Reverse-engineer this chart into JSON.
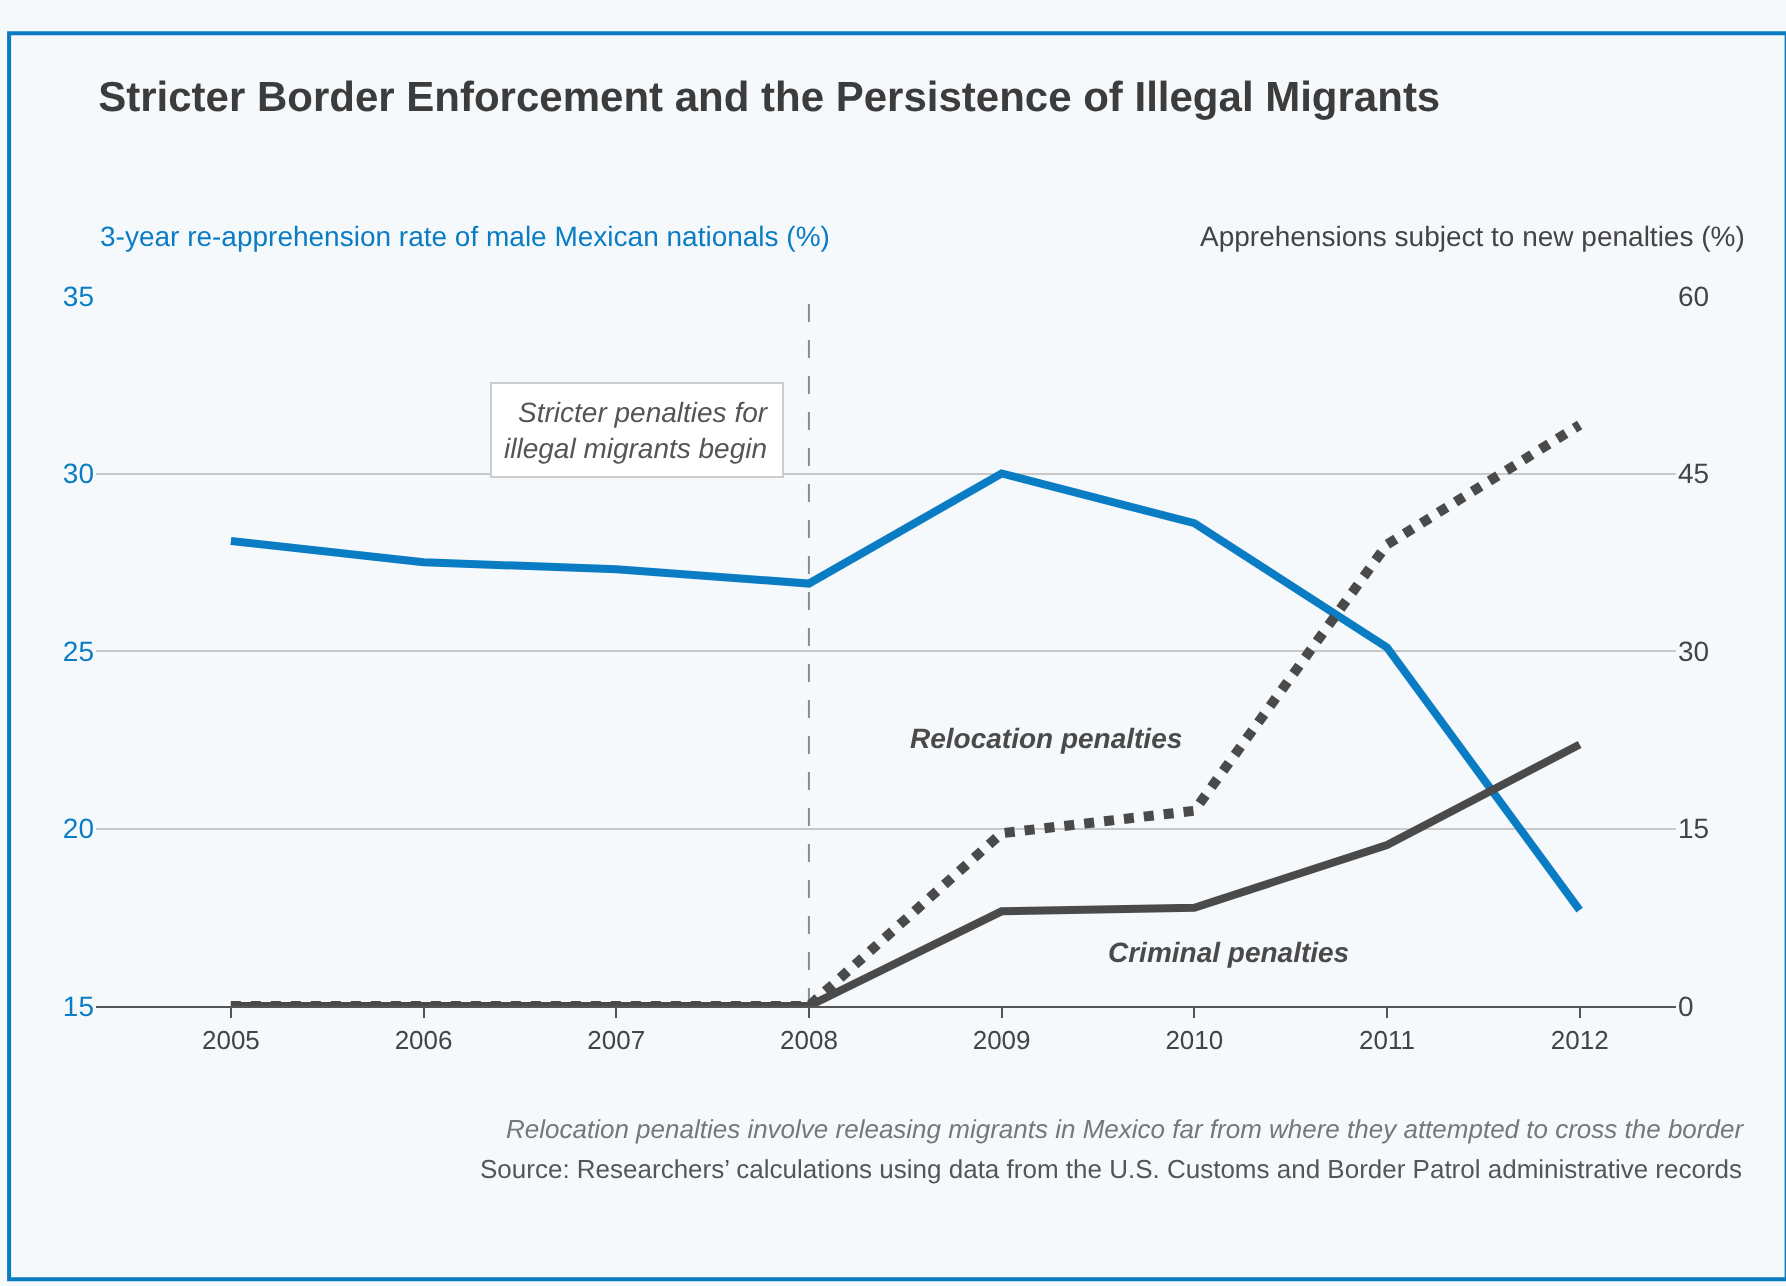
{
  "chart_data": {
    "type": "line",
    "title": "Stricter Border Enforcement and the Persistence of Illegal Migrants",
    "ylabel": "3-year re-apprehension rate of male Mexican nationals (%)",
    "y2label": "Apprehensions subject to new penalties (%)",
    "x": [
      2005,
      2006,
      2007,
      2008,
      2009,
      2010,
      2011,
      2012
    ],
    "xlim": [
      2004.3,
      2012.5
    ],
    "xticks": [
      2005,
      2006,
      2007,
      2008,
      2009,
      2010,
      2011,
      2012
    ],
    "ylim": [
      15,
      35
    ],
    "yticks": [
      15,
      20,
      25,
      30,
      35
    ],
    "y2lim": [
      0,
      60
    ],
    "y2ticks": [
      0,
      15,
      30,
      45,
      60
    ],
    "series": [
      {
        "color": "#0a7cc4",
        "values": [
          28.1,
          27.5,
          27.3,
          26.9,
          30.0,
          28.6,
          25.1,
          17.7
        ],
        "line_style": "solid"
      },
      {
        "name": "Relocation penalties",
        "color": "#4a4a4a",
        "axis": "y2",
        "values": [
          0,
          0,
          0,
          0,
          14.6,
          16.5,
          39.0,
          49.1
        ],
        "line_style": "dotted"
      },
      {
        "name": "Criminal penalties",
        "color": "#4a4a4a",
        "axis": "y2",
        "values": [
          0,
          0,
          0,
          0,
          8.0,
          8.3,
          13.6,
          22.1
        ],
        "line_style": "solid"
      }
    ],
    "ref_lines": [
      {
        "axis": "x",
        "value": 2008,
        "label": "Stricter penalties for\nillegal migrants begin",
        "color": "#8c8c8c",
        "line_style": "dashed"
      }
    ],
    "grid": "y",
    "legend": false,
    "marker": "none",
    "annotations": [
      "Relocation penalties involve releasing migrants in Mexico far from where they attempted to cross the border",
      "Source: Researchers’ calculations using data from the U.S. Customs and Border Patrol administrative records"
    ]
  }
}
